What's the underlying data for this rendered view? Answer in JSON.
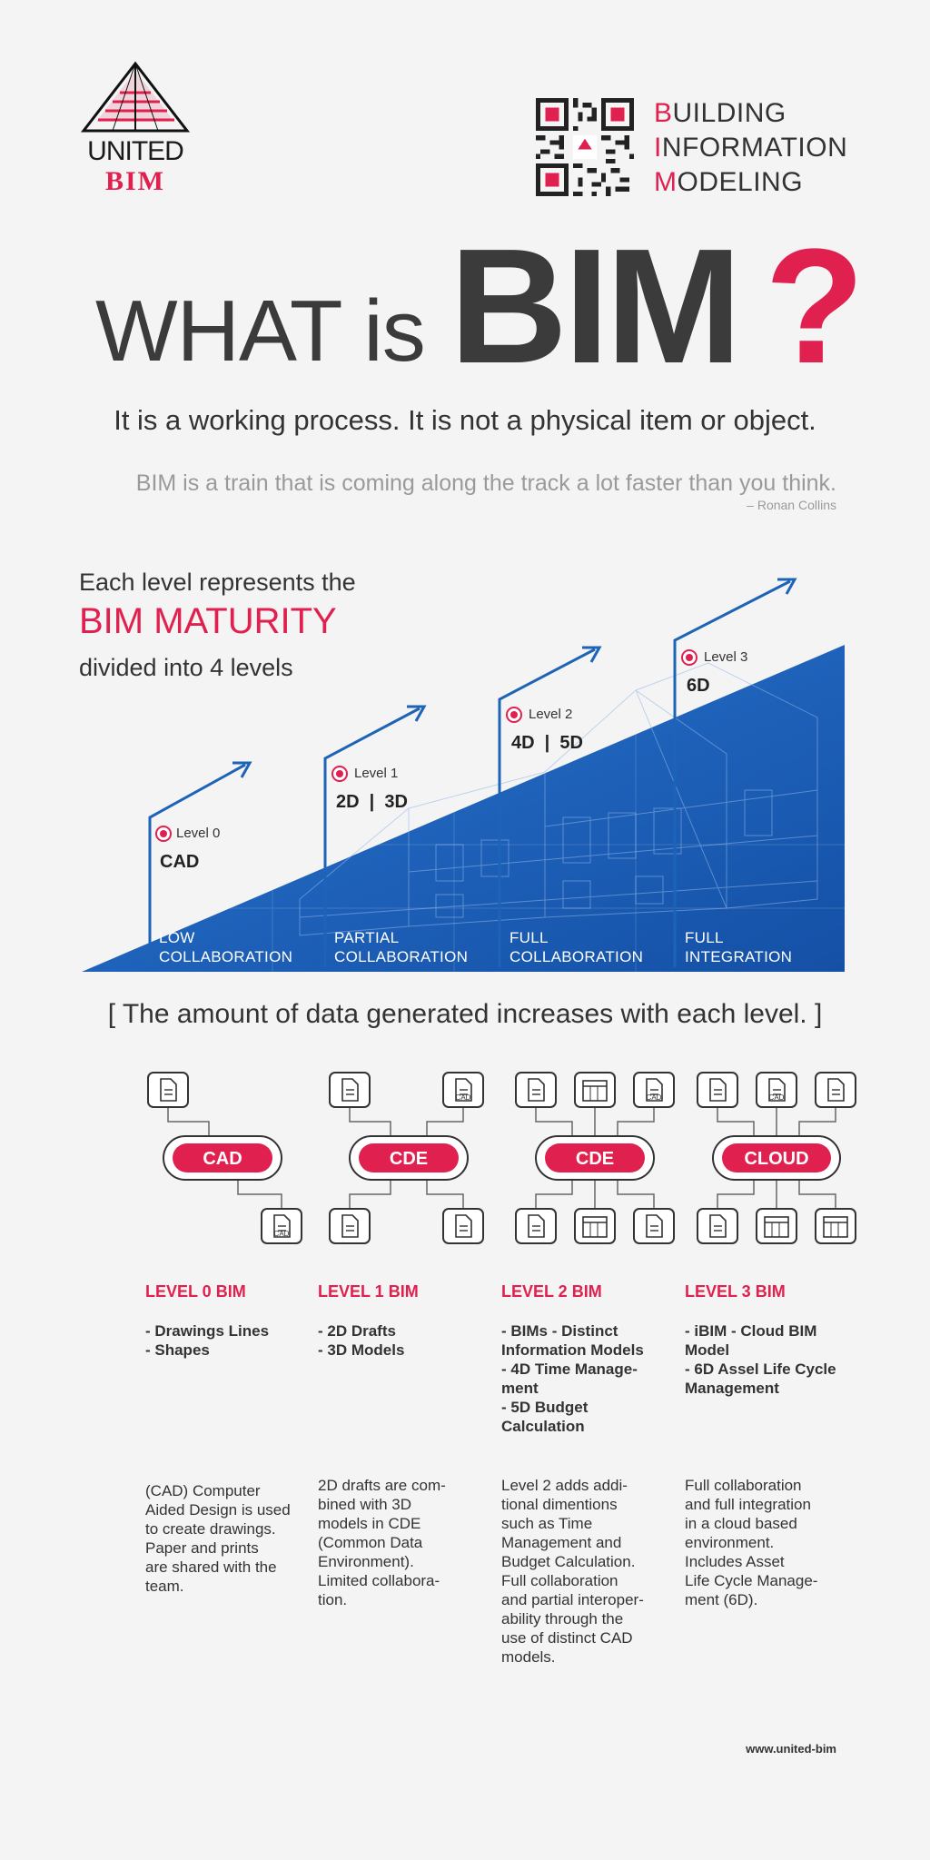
{
  "brand": {
    "united": "UNITED",
    "bim": "BIM"
  },
  "header_lines": [
    {
      "first": "B",
      "rest": "UILDING"
    },
    {
      "first": "I",
      "rest": "NFORMATION"
    },
    {
      "first": "M",
      "rest": "ODELING"
    }
  ],
  "title": {
    "what": "WHAT is",
    "bim": "BIM",
    "q": "?"
  },
  "subtitle": "It is a working process. It is not a physical item or object.",
  "quote": {
    "text": "BIM is a train that is coming along the track a lot faster than you think.",
    "author": "– Ronan Collins"
  },
  "intro": {
    "line1": "Each level represents the",
    "line2": "BIM MATURITY",
    "line3": "divided into 4 levels"
  },
  "levels": [
    {
      "label": "Level 0",
      "dim": "CAD",
      "collab1": "LOW",
      "collab2": "COLLABORATION"
    },
    {
      "label": "Level 1",
      "dim": "2D  |  3D",
      "collab1": "PARTIAL",
      "collab2": "COLLABORATION"
    },
    {
      "label": "Level 2",
      "dim": "4D  |  5D",
      "collab1": "FULL",
      "collab2": "COLLABORATION"
    },
    {
      "label": "Level 3",
      "dim": "6D",
      "collab1": "FULL",
      "collab2": "INTEGRATION"
    }
  ],
  "data_heading": "[ The amount of data generated increases with each level. ]",
  "hubs": [
    "CAD",
    "CDE",
    "CDE",
    "CLOUD"
  ],
  "icon_text": {
    "cad": "CAD"
  },
  "bim_levels": [
    {
      "title": "LEVEL 0 BIM",
      "list": "- Drawings Lines\n- Shapes",
      "desc": "(CAD) Computer\nAided Design is used\nto create drawings.\nPaper and prints\nare shared with the\nteam."
    },
    {
      "title": "LEVEL 1 BIM",
      "list": "- 2D Drafts\n- 3D Models",
      "desc": "2D drafts are com-\nbined with 3D\nmodels in CDE\n(Common Data\nEnvironment).\nLimited collabora-\ntion."
    },
    {
      "title": "LEVEL 2 BIM",
      "list": "- BIMs - Distinct\nInformation Models\n- 4D Time Manage-\nment\n- 5D Budget\nCalculation",
      "desc": "Level 2 adds addi-\ntional dimentions\nsuch as Time\nManagement and\nBudget Calculation.\nFull collaboration\nand partial interoper-\nability through the\nuse of distinct CAD\nmodels."
    },
    {
      "title": "LEVEL 3 BIM",
      "list": "- iBIM - Cloud BIM\nModel\n- 6D Assel Life Cycle\nManagement",
      "desc": "Full collaboration\nand full integration\nin a cloud based\nenvironment.\nIncludes Asset\nLife Cycle Manage-\nment (6D)."
    }
  ],
  "footer": "www.united-bim",
  "colors": {
    "accent": "#e0204e",
    "dark": "#3b3b3b",
    "blue": "#1d63b8"
  }
}
